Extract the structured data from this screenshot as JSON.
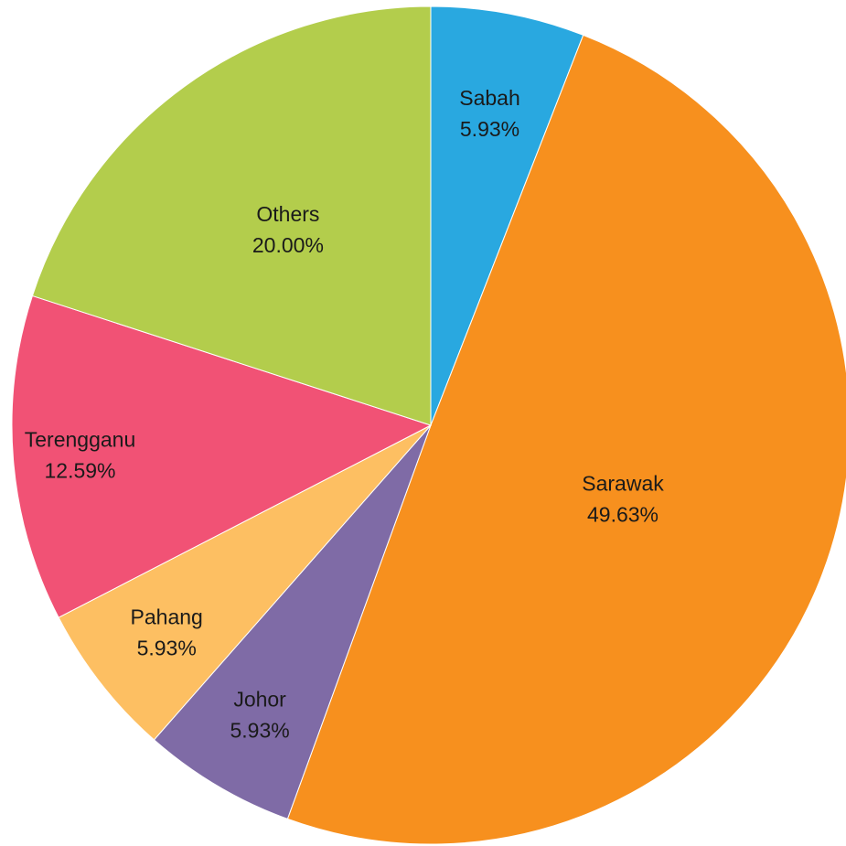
{
  "chart_data": {
    "type": "pie",
    "title": "",
    "start": "12 o'clock",
    "direction": "clockwise",
    "legend": "none",
    "slices": [
      {
        "name": "Sabah",
        "value": 5.93,
        "label": "5.93%",
        "color": "#29a8e0"
      },
      {
        "name": "Sarawak",
        "value": 49.63,
        "label": "49.63%",
        "color": "#f7901e"
      },
      {
        "name": "Johor",
        "value": 5.93,
        "label": "5.93%",
        "color": "#7f6ba6"
      },
      {
        "name": "Pahang",
        "value": 5.93,
        "label": "5.93%",
        "color": "#fdbf62"
      },
      {
        "name": "Terengganu",
        "value": 12.59,
        "label": "12.59%",
        "color": "#f15275"
      },
      {
        "name": "Others",
        "value": 20.0,
        "label": "20.00%",
        "color": "#b3cd4c"
      }
    ]
  }
}
